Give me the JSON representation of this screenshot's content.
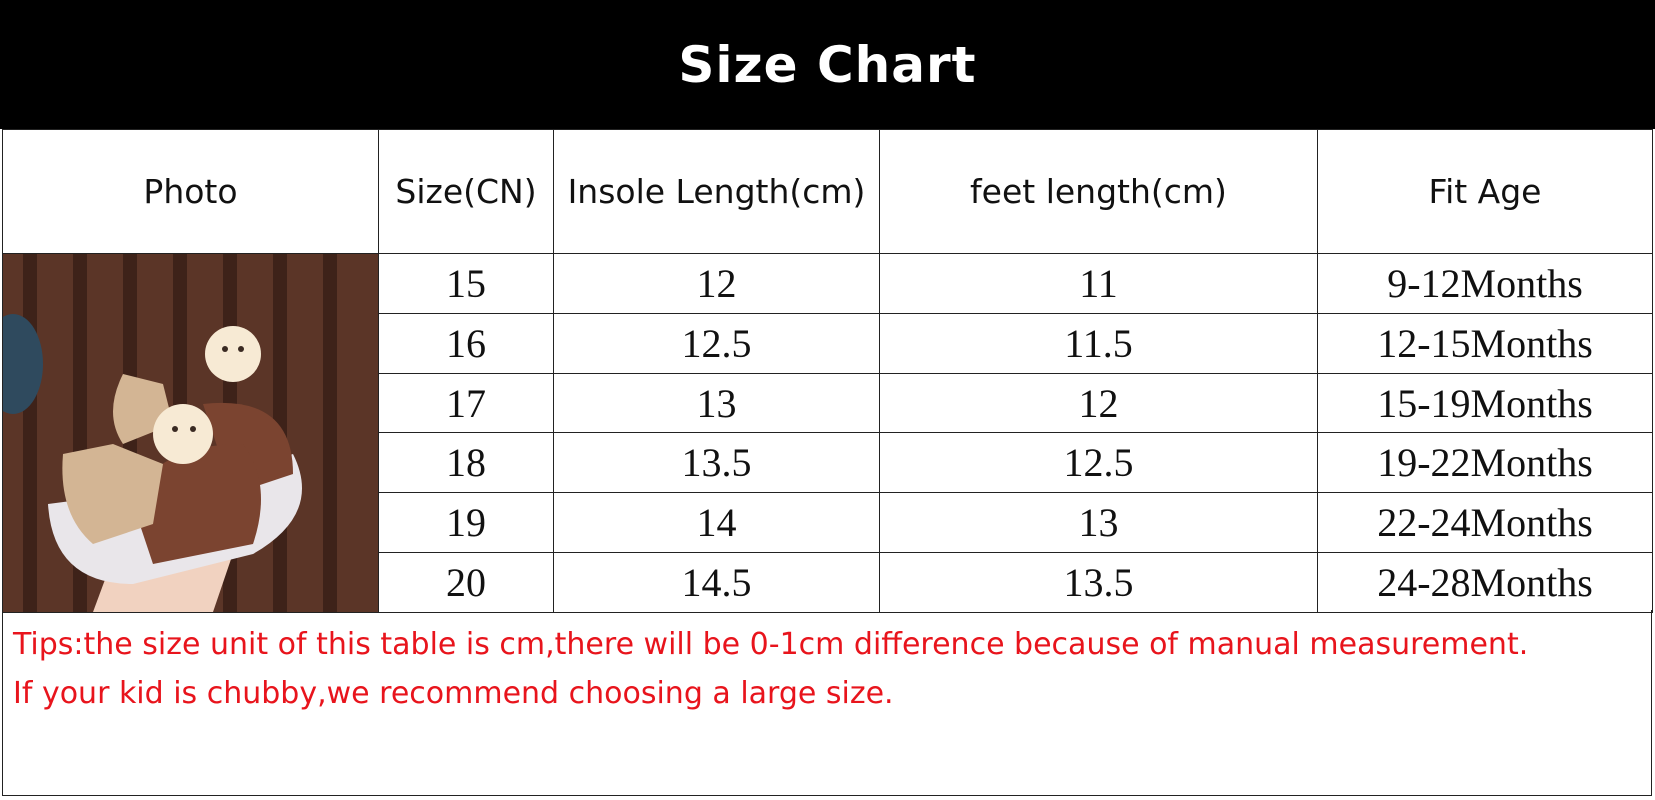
{
  "title": "Size Chart",
  "columns": [
    "Photo",
    "Size(CN)",
    "Insole Length(cm)",
    "feet length(cm)",
    "Fit Age"
  ],
  "rows": [
    {
      "size": "15",
      "insole": "12",
      "feet": "11",
      "age": "9-12Months"
    },
    {
      "size": "16",
      "insole": "12.5",
      "feet": "11.5",
      "age": "12-15Months"
    },
    {
      "size": "17",
      "insole": "13",
      "feet": "12",
      "age": "15-19Months"
    },
    {
      "size": "18",
      "insole": "13.5",
      "feet": "12.5",
      "age": "19-22Months"
    },
    {
      "size": "19",
      "insole": "14",
      "feet": "13",
      "age": "22-24Months"
    },
    {
      "size": "20",
      "insole": "14.5",
      "feet": "13.5",
      "age": "24-28Months"
    }
  ],
  "tips": [
    "Tips:the size unit of  this table is cm,there will be 0-1cm difference because of manual measurement.",
    "If your kid is chubby,we recommend choosing a large size."
  ],
  "colors": {
    "header_bg": "#000000",
    "tips_text": "#e8141c"
  }
}
